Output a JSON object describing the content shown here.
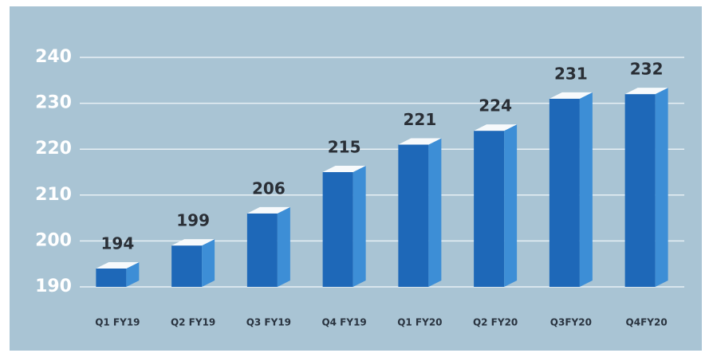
{
  "chart_data": {
    "type": "bar3d",
    "categories": [
      "Q1 FY19",
      "Q2 FY19",
      "Q3 FY19",
      "Q4 FY19",
      "Q1 FY20",
      "Q2 FY20",
      "Q3FY20",
      "Q4FY20"
    ],
    "values": [
      194,
      199,
      206,
      215,
      221,
      224,
      231,
      232
    ],
    "color": "#1e68b8",
    "ylim": [
      190,
      240
    ],
    "yticks": [
      190,
      200,
      210,
      220,
      230,
      240
    ],
    "grid": true
  }
}
